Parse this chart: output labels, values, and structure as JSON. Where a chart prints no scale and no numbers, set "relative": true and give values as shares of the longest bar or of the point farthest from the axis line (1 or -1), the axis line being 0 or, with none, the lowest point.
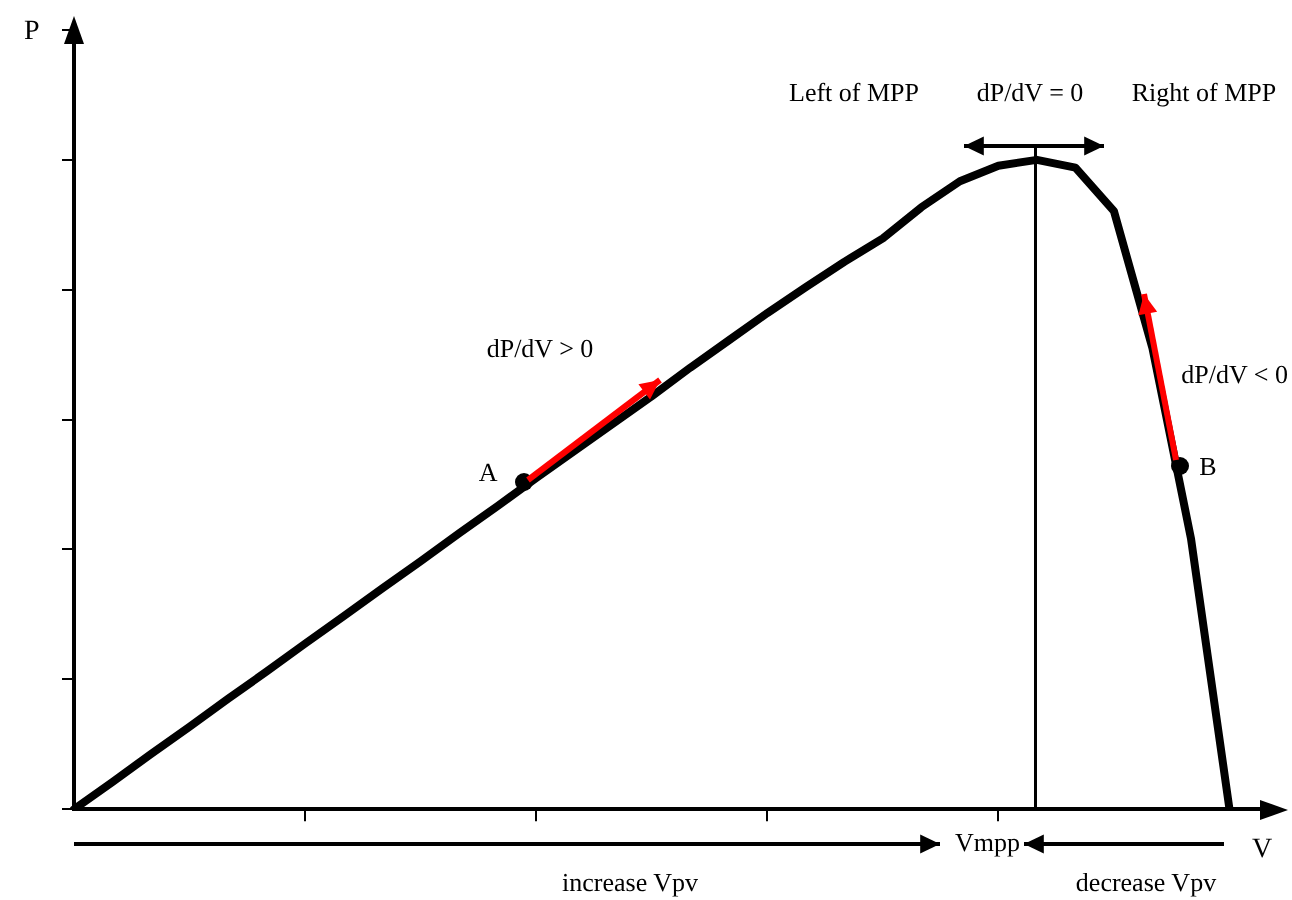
{
  "chart_data": {
    "type": "line",
    "relative": true,
    "xlabel": "V",
    "ylabel": "P",
    "categories": [
      null,
      null,
      null,
      null,
      null,
      null,
      null,
      null,
      null,
      null,
      null,
      null,
      null,
      null,
      null,
      null,
      null,
      null,
      null,
      null,
      null,
      null,
      null,
      null,
      null,
      null,
      null,
      null,
      null,
      null,
      null,
      null
    ],
    "series": [
      {
        "color": "#000000",
        "values": [
          0,
          0.042,
          0.085,
          0.127,
          0.17,
          0.212,
          0.255,
          0.297,
          0.34,
          0.382,
          0.425,
          0.467,
          0.51,
          0.552,
          0.594,
          0.636,
          0.68,
          0.722,
          0.764,
          0.804,
          0.843,
          0.879,
          0.927,
          0.967,
          0.991,
          1,
          0.988,
          0.921,
          0.71,
          0.417,
          0,
          null
        ]
      }
    ],
    "annotations": [
      "Left of MPP",
      "dP/dV = 0",
      "Right of MPP",
      "dP/dV > 0",
      "dP/dV < 0",
      "A",
      "B",
      "increase Vpv",
      "decrease Vpv",
      "Vmpp"
    ],
    "grid": false,
    "legend": false,
    "marker": "none",
    "line_style": "solid"
  }
}
